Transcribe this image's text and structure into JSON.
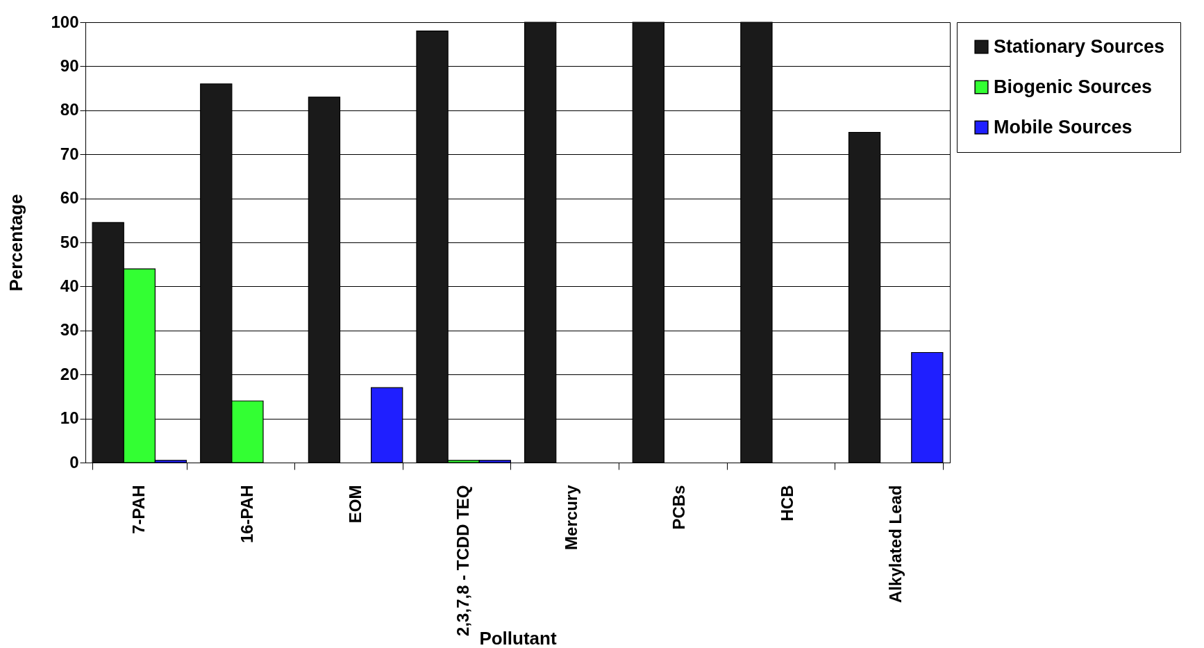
{
  "chart_data": {
    "type": "bar",
    "xlabel": "Pollutant",
    "ylabel": "Percentage",
    "categories": [
      "7-PAH",
      "16-PAH",
      "EOM",
      "2,3,7,8 - TCDD TEQ",
      "Mercury",
      "PCBs",
      "HCB",
      "Alkylated Lead"
    ],
    "series": [
      {
        "name": "Stationary Sources",
        "color": "#1a1a1a",
        "values": [
          54.5,
          86,
          83,
          98,
          100,
          100,
          100,
          75
        ]
      },
      {
        "name": "Biogenic Sources",
        "color": "#33ff33",
        "values": [
          44,
          14,
          null,
          0.5,
          null,
          null,
          null,
          null
        ]
      },
      {
        "name": "Mobile Sources",
        "color": "#1f1fff",
        "values": [
          0.5,
          null,
          17,
          0.5,
          null,
          null,
          null,
          25
        ]
      }
    ],
    "ylim": [
      0,
      100
    ],
    "yticks": [
      0,
      10,
      20,
      30,
      40,
      50,
      60,
      70,
      80,
      90,
      100
    ],
    "grid": "y",
    "legend": "right"
  }
}
